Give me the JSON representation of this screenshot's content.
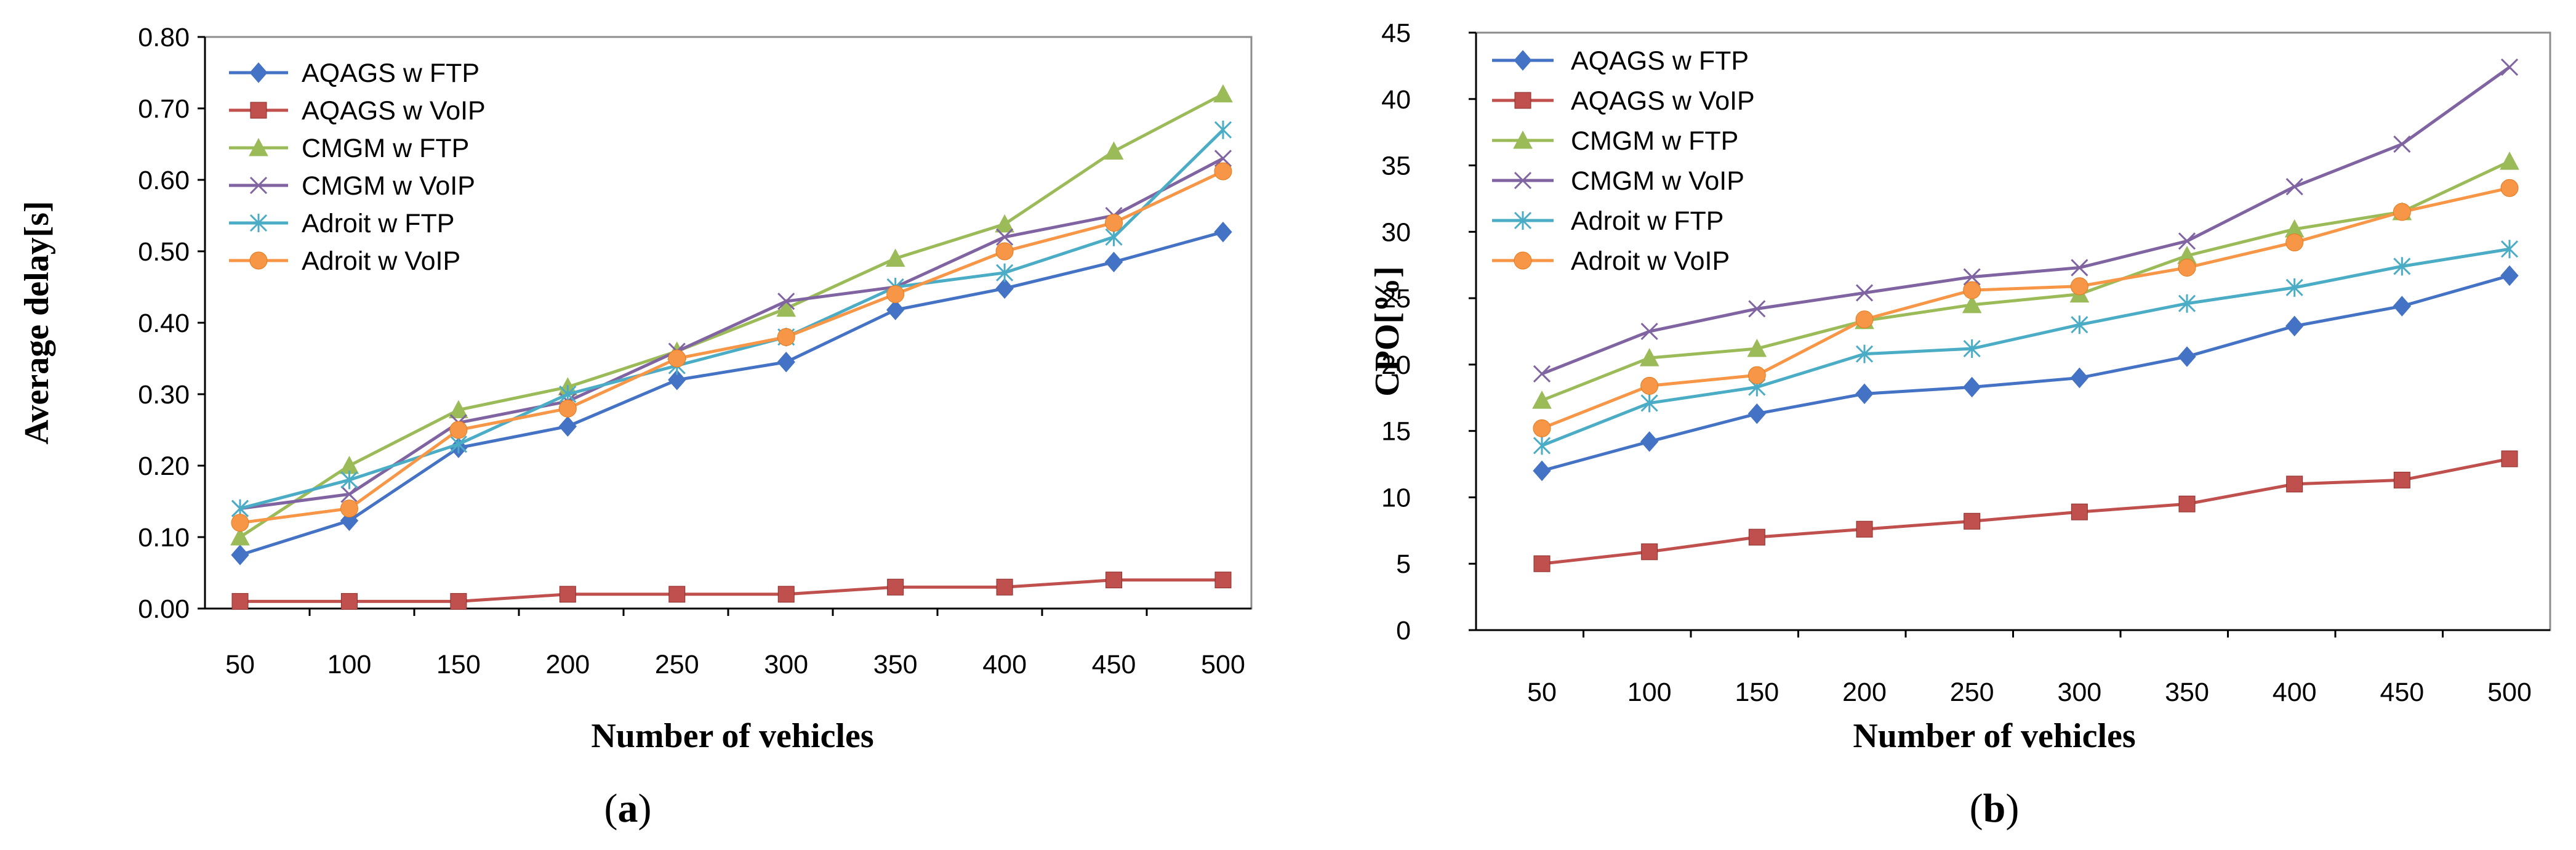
{
  "chart_data": [
    {
      "type": "line",
      "panel_label": "a",
      "xlabel": "Number of vehicles",
      "ylabel": "Average delay[s]",
      "categories": [
        "50",
        "100",
        "150",
        "200",
        "250",
        "300",
        "350",
        "400",
        "450",
        "500"
      ],
      "y_ticks": [
        "0.00",
        "0.10",
        "0.20",
        "0.30",
        "0.40",
        "0.50",
        "0.60",
        "0.70",
        "0.80"
      ],
      "ylim": [
        0,
        0.8
      ],
      "legend_position": "top-left",
      "series": [
        {
          "name": "AQAGS w FTP",
          "color": "#4472C4",
          "marker": "diamond",
          "values": [
            0.075,
            0.123,
            0.225,
            0.255,
            0.32,
            0.345,
            0.418,
            0.448,
            0.485,
            0.527
          ]
        },
        {
          "name": "AQAGS w VoIP",
          "color": "#C0504D",
          "marker": "square",
          "values": [
            0.01,
            0.01,
            0.01,
            0.02,
            0.02,
            0.02,
            0.03,
            0.03,
            0.04,
            0.04
          ]
        },
        {
          "name": "CMGM w FTP",
          "color": "#9BBB59",
          "marker": "triangle",
          "values": [
            0.1,
            0.2,
            0.278,
            0.31,
            0.36,
            0.42,
            0.49,
            0.538,
            0.64,
            0.72
          ]
        },
        {
          "name": "CMGM w VoIP",
          "color": "#8064A2",
          "marker": "x",
          "values": [
            0.14,
            0.16,
            0.26,
            0.29,
            0.36,
            0.43,
            0.45,
            0.52,
            0.55,
            0.63
          ]
        },
        {
          "name": "Adroit w FTP",
          "color": "#4BACC6",
          "marker": "star",
          "values": [
            0.14,
            0.18,
            0.23,
            0.3,
            0.34,
            0.38,
            0.45,
            0.47,
            0.52,
            0.67
          ]
        },
        {
          "name": "Adroit w VoIP",
          "color": "#F79646",
          "marker": "circle",
          "values": [
            0.12,
            0.14,
            0.25,
            0.28,
            0.35,
            0.38,
            0.44,
            0.5,
            0.54,
            0.612
          ]
        }
      ]
    },
    {
      "type": "line",
      "panel_label": "b",
      "xlabel": "Number of vehicles",
      "ylabel": "CPO[%]",
      "categories": [
        "50",
        "100",
        "150",
        "200",
        "250",
        "300",
        "350",
        "400",
        "450",
        "500"
      ],
      "y_ticks": [
        "0",
        "5",
        "10",
        "15",
        "20",
        "25",
        "30",
        "35",
        "40",
        "45"
      ],
      "ylim": [
        0,
        45
      ],
      "legend_position": "top-left",
      "series": [
        {
          "name": "AQAGS w FTP",
          "color": "#4472C4",
          "marker": "diamond",
          "values": [
            12,
            14.2,
            16.3,
            17.8,
            18.3,
            19,
            20.6,
            22.9,
            24.4,
            26.7
          ]
        },
        {
          "name": "AQAGS w VoIP",
          "color": "#C0504D",
          "marker": "square",
          "values": [
            5,
            5.9,
            7,
            7.6,
            8.2,
            8.9,
            9.5,
            11,
            11.3,
            12.9
          ]
        },
        {
          "name": "CMGM w FTP",
          "color": "#9BBB59",
          "marker": "triangle",
          "values": [
            17.3,
            20.5,
            21.2,
            23.3,
            24.5,
            25.3,
            28.2,
            30.2,
            31.5,
            35.3
          ]
        },
        {
          "name": "CMGM w VoIP",
          "color": "#8064A2",
          "marker": "x",
          "values": [
            19.3,
            22.5,
            24.2,
            25.4,
            26.6,
            27.3,
            29.3,
            33.4,
            36.6,
            42.4
          ]
        },
        {
          "name": "Adroit w FTP",
          "color": "#4BACC6",
          "marker": "star",
          "values": [
            13.9,
            17.1,
            18.3,
            20.8,
            21.2,
            23,
            24.6,
            25.8,
            27.4,
            28.7
          ]
        },
        {
          "name": "Adroit w VoIP",
          "color": "#F79646",
          "marker": "circle",
          "values": [
            15.2,
            18.4,
            19.2,
            23.4,
            25.6,
            25.9,
            27.3,
            29.2,
            31.5,
            33.3
          ]
        }
      ]
    }
  ]
}
